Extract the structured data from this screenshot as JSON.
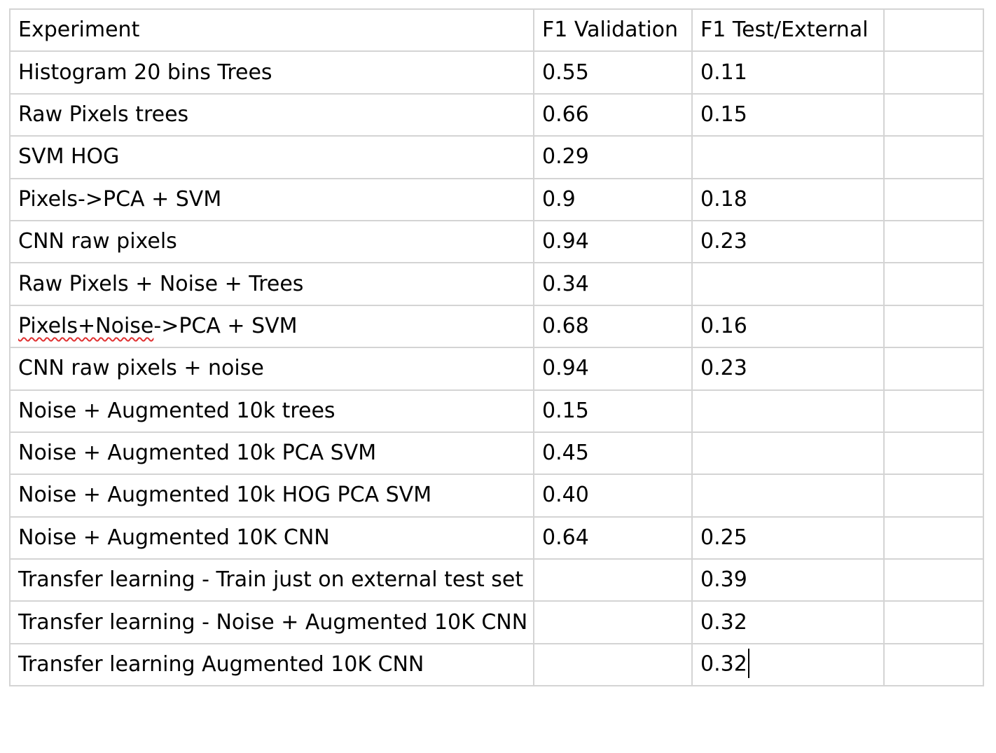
{
  "table": {
    "headers": [
      "Experiment",
      "F1 Validation",
      "F1 Test/External",
      ""
    ],
    "rows": [
      {
        "experiment": "Histogram 20 bins Trees",
        "f1_validation": "0.55",
        "f1_test": "0.11"
      },
      {
        "experiment": "Raw Pixels trees",
        "f1_validation": "0.66",
        "f1_test": "0.15"
      },
      {
        "experiment": "SVM HOG",
        "f1_validation": "0.29",
        "f1_test": ""
      },
      {
        "experiment": "Pixels->PCA + SVM",
        "f1_validation": "0.9",
        "f1_test": "0.18"
      },
      {
        "experiment": "CNN raw pixels",
        "f1_validation": "0.94",
        "f1_test": "0.23"
      },
      {
        "experiment": "Raw Pixels + Noise + Trees",
        "f1_validation": "0.34",
        "f1_test": ""
      },
      {
        "experiment_flagged": "Pixels+Noise",
        "experiment_rest": "->PCA + SVM",
        "f1_validation": "0.68",
        "f1_test": "0.16"
      },
      {
        "experiment": "CNN raw pixels + noise",
        "f1_validation": "0.94",
        "f1_test": "0.23"
      },
      {
        "experiment": "Noise + Augmented 10k trees",
        "f1_validation": "0.15",
        "f1_test": ""
      },
      {
        "experiment": "Noise + Augmented 10k PCA SVM",
        "f1_validation": "0.45",
        "f1_test": ""
      },
      {
        "experiment": "Noise + Augmented 10k HOG PCA SVM",
        "f1_validation": "0.40",
        "f1_test": ""
      },
      {
        "experiment": "Noise + Augmented 10K CNN",
        "f1_validation": "0.64",
        "f1_test": "0.25"
      },
      {
        "experiment": "Transfer learning - Train just on external test set",
        "f1_validation": "",
        "f1_test": "0.39"
      },
      {
        "experiment": "Transfer learning - Noise + Augmented 10K CNN",
        "f1_validation": "",
        "f1_test": "0.32"
      },
      {
        "experiment": "Transfer learning Augmented 10K CNN",
        "f1_validation": "",
        "f1_test": "0.32"
      }
    ]
  },
  "editor": {
    "spellcheck_color": "#e03030",
    "cursor_cell": "rows.14.f1_test"
  }
}
